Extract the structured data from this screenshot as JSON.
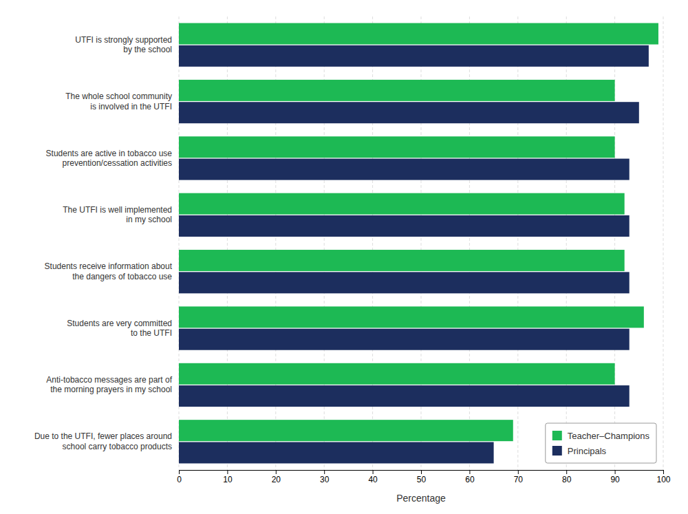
{
  "chart_data": {
    "type": "bar",
    "orientation": "horizontal",
    "categories": [
      "UTFI is strongly supported\nby the school",
      "The whole school community\nis involved in the UTFI",
      "Students are active in tobacco use\nprevention/cessation activities",
      "The UTFI is well implemented\nin my school",
      "Students receive information about\nthe dangers of tobacco use",
      "Students are very committed\nto the UTFI",
      "Anti-tobacco messages are part of\nthe morning prayers in my school",
      "Due to the UTFI, fewer places around\nschool carry tobacco products"
    ],
    "series": [
      {
        "name": "Teacher–Champions",
        "color": "#1db954",
        "values": [
          99,
          90,
          90,
          92,
          92,
          96,
          90,
          69
        ]
      },
      {
        "name": "Principals",
        "color": "#1c2e5e",
        "values": [
          97,
          95,
          93,
          93,
          93,
          93,
          93,
          65
        ]
      }
    ],
    "xlabel": "Percentage",
    "xlim": [
      0,
      100
    ],
    "xticks": [
      0,
      10,
      20,
      30,
      40,
      50,
      60,
      70,
      80,
      90,
      100
    ],
    "grid": true,
    "legend": "lower right"
  }
}
